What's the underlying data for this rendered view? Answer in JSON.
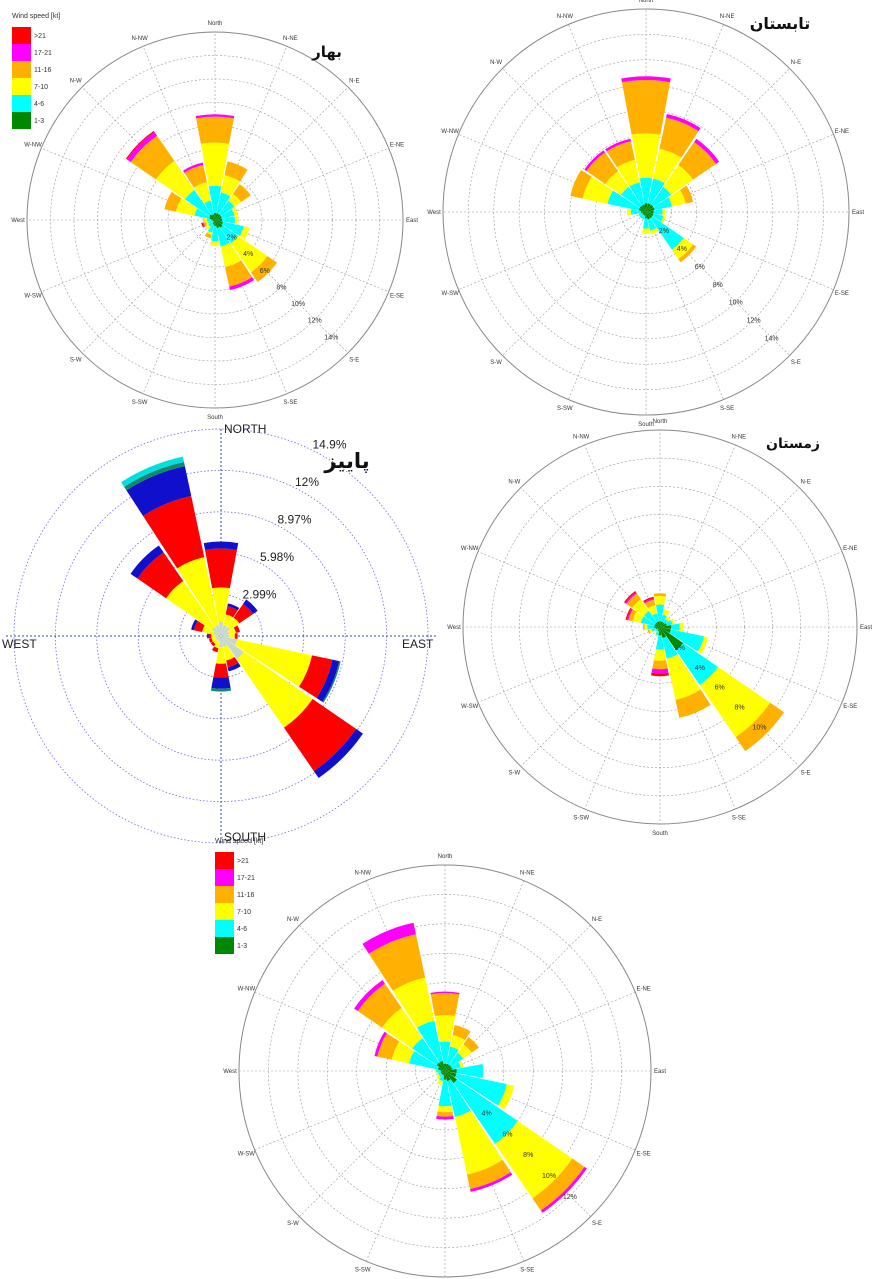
{
  "colors": {
    "gt21": "#ff0000",
    "17_21": "#ff00ff",
    "11_16": "#ffb000",
    "7_10": "#ffff00",
    "4_6": "#00ffff",
    "1_3": "#008800",
    "autumn_calm": "#c8d8c8",
    "autumn_blue": "#1010cc",
    "autumn_teal": "#118866",
    "autumn_cyan": "#00e0e0"
  },
  "legend": {
    "title": "Wind speed [kt]",
    "items": [
      ">21",
      "17-21",
      "11-16",
      "7-10",
      "4-6",
      "1-3"
    ]
  },
  "direction_labels": [
    "North",
    "N-NE",
    "N-E",
    "E-NE",
    "East",
    "E-SE",
    "S-E",
    "S-SE",
    "South",
    "S-SW",
    "S-W",
    "W-SW",
    "West",
    "W-NW",
    "N-W",
    "N-NW"
  ],
  "autumn_direction_labels": [
    "NORTH",
    "EAST",
    "SOUTH",
    "WEST"
  ],
  "chart_data": [
    {
      "type": "wind-rose",
      "title": "بهار",
      "directions": [
        "North",
        "N-NE",
        "N-E",
        "E-NE",
        "East",
        "E-SE",
        "S-E",
        "S-SE",
        "South",
        "S-SW",
        "S-W",
        "W-SW",
        "West",
        "W-NW",
        "N-W",
        "N-NW"
      ],
      "bins": [
        "1-3",
        "4-6",
        "7-10",
        "11-16",
        "17-21",
        ">21"
      ],
      "rings": [
        "2%",
        "4%",
        "6%",
        "8%",
        "10%",
        "12%",
        "14%"
      ],
      "ring_max": 16,
      "values": [
        [
          0.6,
          2.3,
          3.7,
          2.2,
          0.2,
          0
        ],
        [
          0.6,
          1.8,
          1.5,
          1.2,
          0,
          0
        ],
        [
          0.6,
          1.4,
          0.7,
          1.0,
          0,
          0
        ],
        [
          0.6,
          1.1,
          0.3,
          0,
          0,
          0
        ],
        [
          0.6,
          1.1,
          0.3,
          0,
          0,
          0
        ],
        [
          0.7,
          1.8,
          0.5,
          0,
          0,
          0
        ],
        [
          0.8,
          1.6,
          3.0,
          1.0,
          0,
          0
        ],
        [
          0.7,
          1.6,
          1.8,
          1.7,
          0.3,
          0
        ],
        [
          0.5,
          1.3,
          0.4,
          0,
          0,
          0
        ],
        [
          0.4,
          0.7,
          0.2,
          0.3,
          0,
          0
        ],
        [
          0.2,
          0.5,
          0.3,
          0,
          0,
          0
        ],
        [
          0.2,
          0.4,
          0.2,
          0.2,
          0.1,
          0.1
        ],
        [
          0.3,
          0.4,
          0.2,
          0.1,
          0,
          0
        ],
        [
          0.5,
          1.3,
          1.6,
          1.0,
          0,
          0
        ],
        [
          0.6,
          2.5,
          3.0,
          2.6,
          0.4,
          0.1
        ],
        [
          0.5,
          1.2,
          1.6,
          1.5,
          0.2,
          0
        ]
      ]
    },
    {
      "type": "wind-rose",
      "title": "تابستان",
      "directions": [
        "North",
        "N-NE",
        "N-E",
        "E-NE",
        "East",
        "E-SE",
        "S-E",
        "S-SE",
        "South",
        "S-SW",
        "S-W",
        "W-SW",
        "West",
        "W-NW",
        "N-W",
        "N-NW"
      ],
      "bins": [
        "1-3",
        "4-6",
        "7-10",
        "11-16",
        "17-21",
        ">21"
      ],
      "rings": [
        "2%",
        "4%",
        "6%",
        "8%",
        "10%",
        "12%",
        "14%"
      ],
      "ring_max": 16,
      "values": [
        [
          0.7,
          2.0,
          3.5,
          4.2,
          0.3,
          0
        ],
        [
          0.7,
          2.0,
          2.4,
          2.5,
          0.3,
          0
        ],
        [
          0.7,
          1.7,
          2.1,
          2.2,
          0.3,
          0
        ],
        [
          0.7,
          1.4,
          1.1,
          0.6,
          0,
          0
        ],
        [
          0.6,
          0.7,
          0.2,
          0,
          0,
          0
        ],
        [
          0.6,
          0.8,
          0.2,
          0,
          0,
          0
        ],
        [
          0.6,
          3.0,
          0.9,
          0.3,
          0,
          0
        ],
        [
          0.6,
          0.9,
          0.3,
          0,
          0,
          0
        ],
        [
          0.5,
          0.8,
          0.4,
          0,
          0,
          0
        ],
        [
          0.3,
          0.3,
          0,
          0,
          0,
          0
        ],
        [
          0.3,
          0.3,
          0,
          0,
          0,
          0
        ],
        [
          0.3,
          0.3,
          0,
          0,
          0,
          0
        ],
        [
          0.4,
          0.8,
          0.3,
          0,
          0,
          0
        ],
        [
          0.6,
          2.5,
          2.0,
          1.0,
          0,
          0
        ],
        [
          0.6,
          1.8,
          1.5,
          1.8,
          0.2,
          0
        ],
        [
          0.6,
          1.8,
          1.8,
          1.5,
          0.2,
          0
        ]
      ]
    },
    {
      "type": "wind-rose",
      "title": "پاییز",
      "directions": [
        "NORTH",
        "N-NE",
        "N-E",
        "E-NE",
        "EAST",
        "E-SE",
        "S-E",
        "S-SE",
        "SOUTH",
        "S-SW",
        "S-W",
        "W-SW",
        "WEST",
        "W-NW",
        "N-W",
        "N-NW"
      ],
      "rings": [
        "2.99%",
        "5.98%",
        "8.97%",
        "12%",
        "14.9%"
      ],
      "ring_max": 14.9,
      "bins": [
        "calm",
        "yellow",
        "red",
        "blue",
        "teal",
        "cyan"
      ],
      "values": [
        [
          1.0,
          2.5,
          2.8,
          0.5,
          0,
          0
        ],
        [
          0.8,
          0.8,
          0.6,
          0.2,
          0,
          0
        ],
        [
          0.8,
          0.8,
          1.2,
          0.4,
          0,
          0
        ],
        [
          0.6,
          0.5,
          0.3,
          0,
          0,
          0
        ],
        [
          0.6,
          0.4,
          0.2,
          0,
          0,
          0
        ],
        [
          1.2,
          5.5,
          1.5,
          0.5,
          0.1,
          0
        ],
        [
          2.0,
          6.0,
          3.8,
          0.6,
          0,
          0
        ],
        [
          0.8,
          1.0,
          0.5,
          0.3,
          0,
          0
        ],
        [
          0.8,
          1.2,
          1.0,
          0.8,
          0.2,
          0
        ],
        [
          0.4,
          0.5,
          0.3,
          0,
          0,
          0
        ],
        [
          0.4,
          0.3,
          0.2,
          0,
          0,
          0
        ],
        [
          0.4,
          0.3,
          0.2,
          0,
          0,
          0
        ],
        [
          0.4,
          0.3,
          0.2,
          0.1,
          0,
          0
        ],
        [
          0.6,
          0.8,
          0.6,
          0.2,
          0,
          0
        ],
        [
          0.8,
          4.0,
          2.5,
          0.6,
          0,
          0
        ],
        [
          0.8,
          5.0,
          4.5,
          2.2,
          0.3,
          0.4
        ]
      ]
    },
    {
      "type": "wind-rose",
      "title": "زمستان",
      "directions": [
        "North",
        "N-NE",
        "N-E",
        "E-NE",
        "East",
        "E-SE",
        "S-E",
        "S-SE",
        "South",
        "S-SW",
        "S-W",
        "W-SW",
        "West",
        "W-NW",
        "N-W",
        "N-NW"
      ],
      "bins": [
        "1-3",
        "4-6",
        "7-10",
        "11-16",
        "17-21",
        ">21"
      ],
      "rings": [
        "2%",
        "4%",
        "6%",
        "8%",
        "10%"
      ],
      "ring_max": 14,
      "values": [
        [
          0.4,
          1.2,
          0.6,
          0.2,
          0,
          0
        ],
        [
          0.4,
          0.5,
          0.4,
          0,
          0,
          0
        ],
        [
          0.4,
          0.3,
          0.2,
          0,
          0,
          0
        ],
        [
          0.5,
          0.4,
          0.2,
          0,
          0,
          0
        ],
        [
          0.8,
          0.6,
          0.3,
          0,
          0,
          0
        ],
        [
          0.8,
          2.4,
          0.3,
          0,
          0,
          0
        ],
        [
          2.0,
          3.0,
          4.5,
          1.2,
          0,
          0
        ],
        [
          0.8,
          1.5,
          3.0,
          1.3,
          0,
          0
        ],
        [
          0.6,
          1.0,
          0.8,
          0.6,
          0.3,
          0.2
        ],
        [
          0.3,
          0.3,
          0.1,
          0,
          0,
          0
        ],
        [
          0.2,
          0.2,
          0.1,
          0,
          0,
          0
        ],
        [
          0.3,
          0.3,
          0.2,
          0.1,
          0,
          0
        ],
        [
          0.4,
          0.5,
          0.2,
          0.1,
          0,
          0
        ],
        [
          0.4,
          1.0,
          0.6,
          0.3,
          0.1,
          0.1
        ],
        [
          0.4,
          1.0,
          1.0,
          0.5,
          0.1,
          0.1
        ],
        [
          0.4,
          0.6,
          0.6,
          0.4,
          0.1,
          0.1
        ]
      ]
    },
    {
      "type": "wind-rose",
      "title": "",
      "directions": [
        "North",
        "N-NE",
        "N-E",
        "E-NE",
        "East",
        "E-SE",
        "S-E",
        "S-SE",
        "South",
        "S-SW",
        "S-W",
        "W-SW",
        "West",
        "W-NW",
        "N-W",
        "N-NW"
      ],
      "bins": [
        "1-3",
        "4-6",
        "7-10",
        "11-16",
        "17-21",
        ">21"
      ],
      "rings": [
        "4%",
        "6%",
        "8%",
        "10%",
        "12%"
      ],
      "ring_max": 14,
      "values": [
        [
          0.5,
          1.5,
          1.8,
          1.5,
          0.1,
          0
        ],
        [
          0.5,
          1.2,
          0.8,
          0.7,
          0,
          0
        ],
        [
          0.5,
          1.0,
          0.7,
          0.6,
          0,
          0
        ],
        [
          0.5,
          0.6,
          0.2,
          0,
          0,
          0
        ],
        [
          0.8,
          1.8,
          0,
          0,
          0,
          0
        ],
        [
          0.8,
          3.5,
          0.5,
          0,
          0,
          0
        ],
        [
          1.0,
          5.0,
          4.5,
          1.0,
          0.2,
          0
        ],
        [
          0.7,
          2.5,
          4.0,
          1.0,
          0.2,
          0
        ],
        [
          0.6,
          1.8,
          0.4,
          0.3,
          0.2,
          0
        ],
        [
          0.3,
          0.4,
          0.3,
          0,
          0,
          0
        ],
        [
          0.3,
          0.2,
          0.2,
          0,
          0,
          0
        ],
        [
          0.3,
          0.2,
          0.1,
          0,
          0,
          0
        ],
        [
          0.3,
          0.3,
          0.1,
          0,
          0,
          0
        ],
        [
          0.5,
          2.0,
          1.2,
          1.0,
          0.2,
          0
        ],
        [
          0.7,
          2.0,
          2.5,
          2.0,
          0.3,
          0
        ],
        [
          0.7,
          2.8,
          3.0,
          3.0,
          0.8,
          0
        ]
      ]
    }
  ]
}
